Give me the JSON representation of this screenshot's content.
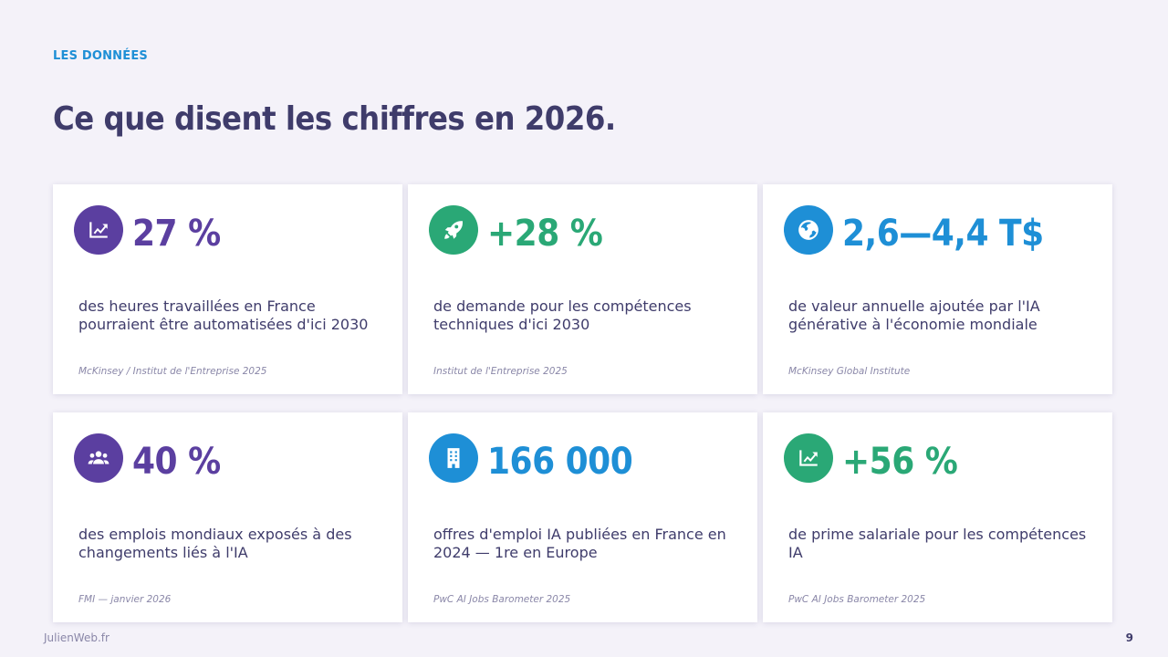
{
  "header": {
    "eyebrow": "LES DONNÉES",
    "title": "Ce que disent les chiffres en 2026."
  },
  "colors": {
    "purple": "#5b3fa0",
    "green": "#2aa876",
    "blue": "#1e8fd6",
    "text": "#3f3c6b",
    "muted": "#8a87a8",
    "background": "#f4f2f9"
  },
  "cards": [
    {
      "icon": "trending-up-icon",
      "accent": "purple",
      "value": "27 %",
      "description": "des heures travaillées en France pourraient être automatisées d'ici 2030",
      "source": "McKinsey / Institut de l'Entreprise 2025"
    },
    {
      "icon": "rocket-icon",
      "accent": "green",
      "value": "+28 %",
      "description": "de demande pour les compétences techniques d'ici 2030",
      "source": "Institut de l'Entreprise 2025"
    },
    {
      "icon": "globe-icon",
      "accent": "blue",
      "value": "2,6—4,4 T$",
      "description": "de valeur annuelle ajoutée par l'IA générative à l'économie mondiale",
      "source": "McKinsey Global Institute"
    },
    {
      "icon": "users-icon",
      "accent": "purple",
      "value": "40 %",
      "description": "des emplois mondiaux exposés à des changements liés à l'IA",
      "source": "FMI — janvier 2026"
    },
    {
      "icon": "building-icon",
      "accent": "blue",
      "value": "166 000",
      "description": "offres d'emploi IA publiées en France en 2024 — 1re en Europe",
      "source": "PwC AI Jobs Barometer 2025"
    },
    {
      "icon": "trending-up-icon",
      "accent": "green",
      "value": "+56 %",
      "description": "de prime salariale pour les compétences IA",
      "source": "PwC AI Jobs Barometer 2025"
    }
  ],
  "footer": {
    "site": "JulienWeb.fr",
    "page_number": "9"
  }
}
